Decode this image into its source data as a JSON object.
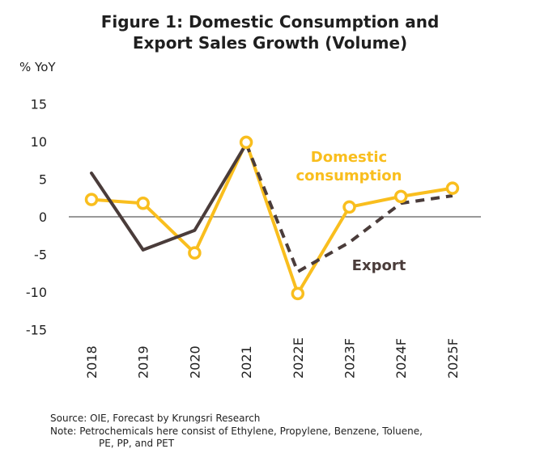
{
  "title_line1": "Figure 1: Domestic Consumption and",
  "title_line2": "Export Sales Growth (Volume)",
  "chart_data": {
    "type": "line",
    "title": "Figure 1: Domestic Consumption and Export Sales Growth (Volume)",
    "ylabel": "% YoY",
    "xlabel": "",
    "categories": [
      "2018",
      "2019",
      "2020",
      "2021",
      "2022E",
      "2023F",
      "2024F",
      "2025F"
    ],
    "yticks": [
      "15",
      "10",
      "5",
      "0",
      "-5",
      "-10",
      "-15"
    ],
    "ylim": [
      -15,
      15
    ],
    "grid": false,
    "series": [
      {
        "name": "Domestic consumption",
        "values": [
          2.3,
          1.8,
          -4.8,
          9.9,
          -10.2,
          1.3,
          2.7,
          3.8
        ],
        "color": "#F9BE1E",
        "style": "solid-markers"
      },
      {
        "name": "Export",
        "values": [
          5.8,
          -4.4,
          -1.8,
          9.7,
          -7.3,
          -3.4,
          1.8,
          2.8
        ],
        "color": "#4A3C3A",
        "style": "solid-then-dashed",
        "dashed_from_index": 3
      }
    ]
  },
  "footnotes": {
    "source": "Source: OIE, Forecast by Krungsri Research",
    "note_line1": "Note: Petrochemicals here consist of Ethylene, Propylene, Benzene, Toluene,",
    "note_line2": "PE, PP, and PET"
  }
}
